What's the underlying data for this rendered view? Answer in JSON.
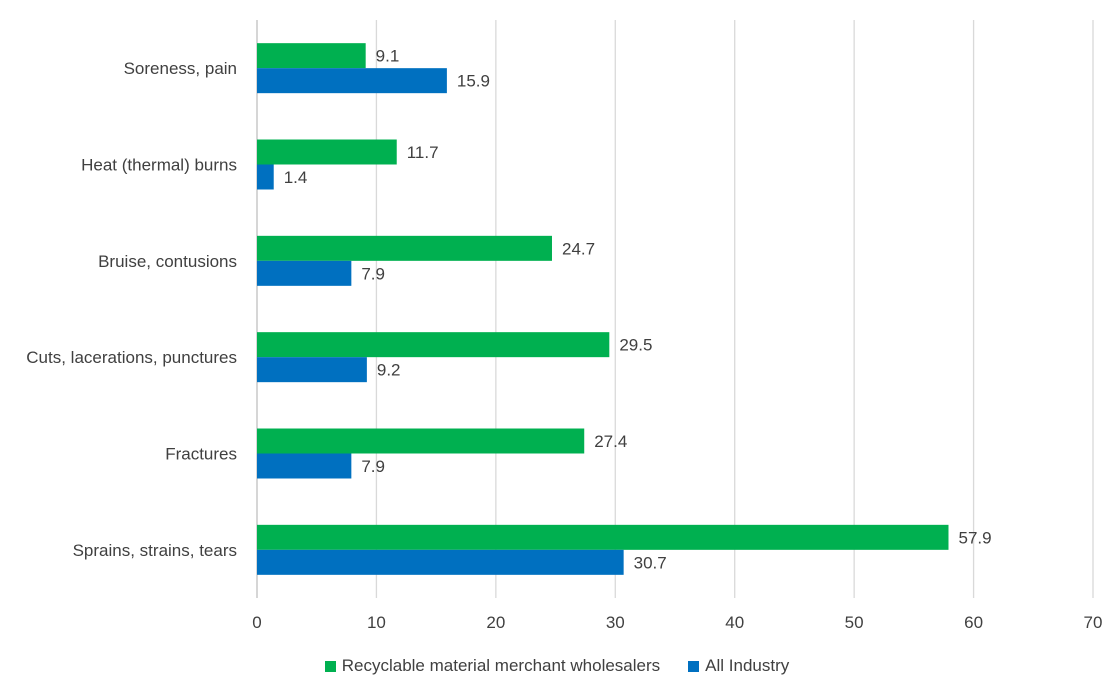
{
  "chart_data": {
    "type": "bar",
    "orientation": "horizontal",
    "categories": [
      "Soreness, pain",
      "Heat (thermal) burns",
      "Bruise, contusions",
      "Cuts, lacerations, punctures",
      "Fractures",
      "Sprains, strains, tears"
    ],
    "series": [
      {
        "name": "Recyclable material merchant wholesalers",
        "color": "#00b050",
        "values": [
          9.1,
          11.7,
          24.7,
          29.5,
          27.4,
          57.9
        ],
        "labels": [
          "9.1",
          "11.7",
          "24.7",
          "29.5",
          "27.4",
          "57.9"
        ]
      },
      {
        "name": "All Industry",
        "color": "#0070c0",
        "values": [
          15.9,
          1.4,
          7.9,
          9.2,
          7.9,
          30.7
        ],
        "labels": [
          "15.9",
          "1.4",
          "7.9",
          "9.2",
          "7.9",
          "30.7"
        ]
      }
    ],
    "xlim": [
      0,
      70
    ],
    "xticks": [
      0,
      10,
      20,
      30,
      40,
      50,
      60,
      70
    ],
    "xtick_labels": [
      "0",
      "10",
      "20",
      "30",
      "40",
      "50",
      "60",
      "70"
    ],
    "grid": true,
    "legend_position": "bottom",
    "title": "",
    "xlabel": "",
    "ylabel": ""
  }
}
